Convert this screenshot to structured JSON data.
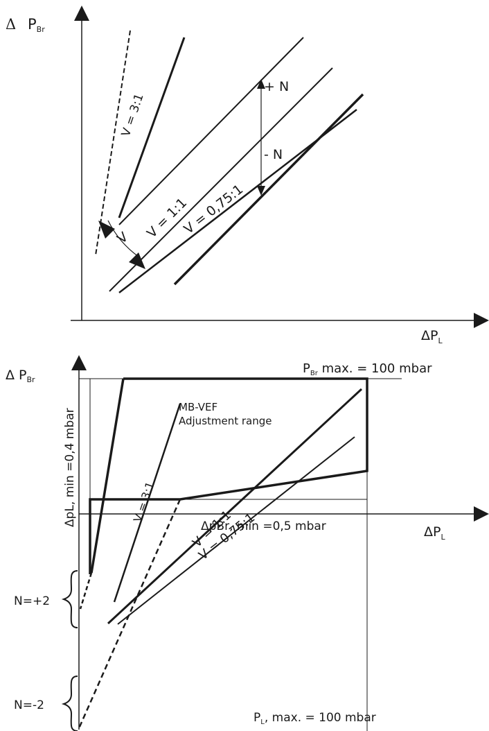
{
  "top_diagram": {
    "y_axis_label": {
      "delta": "Δ",
      "main": "P",
      "sub": "Br"
    },
    "x_axis_label": {
      "main": "ΔP",
      "sub": "L"
    },
    "labels": {
      "ratio_3_1": "V = 3:1",
      "ratio_1_1": "V = 1:1",
      "ratio_075_1": "V = 0,75:1",
      "plus_n": "+ N",
      "minus_n": "- N",
      "v": "V"
    }
  },
  "bottom_diagram": {
    "y_axis_label": {
      "main": "Δ P",
      "sub": "Br"
    },
    "x_axis_label": {
      "main": "ΔP",
      "sub": "L"
    },
    "pbr_max": {
      "main": "P",
      "sub": "Br",
      "rest": " max. = 100 mbar"
    },
    "pl_max": {
      "main": "P",
      "sub": "L",
      "rest": ", max. = 100 mbar"
    },
    "adjustment_line1": "MB-VEF",
    "adjustment_line2": "Adjustment range",
    "ratio_3_1": "V = 3:1",
    "ratio_1_1": "V = 1:1",
    "ratio_075_1": "V = 0,75:1",
    "dpl_min": "ΔpL, min =0,4 mbar",
    "dpbr_min": "ΔpBr, min =0,5 mbar",
    "n_plus": "N=+2",
    "n_minus": "N=-2"
  }
}
